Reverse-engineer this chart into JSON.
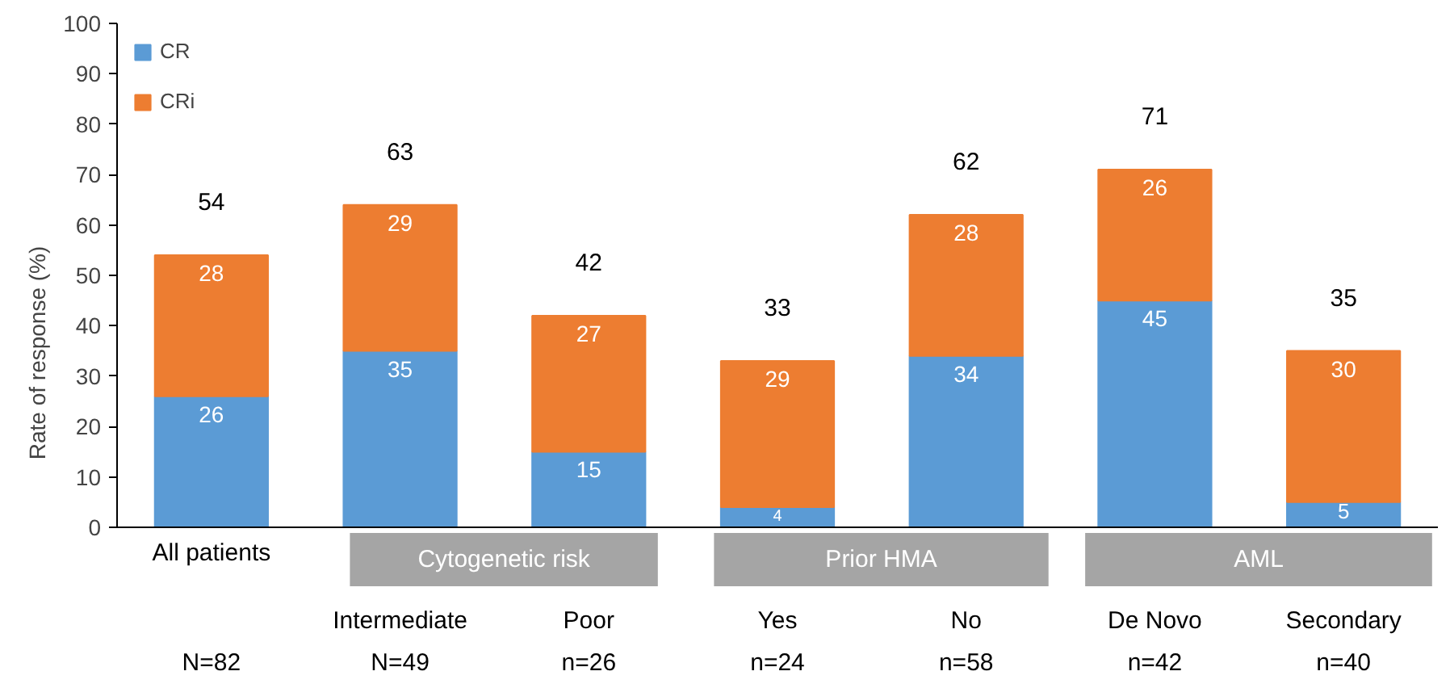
{
  "chart_data": {
    "type": "bar",
    "stacked": true,
    "ylabel": "Rate of response (%)",
    "categories": [
      "All patients",
      "Intermediate",
      "Poor",
      "Yes",
      "No",
      "De Novo",
      "Secondary"
    ],
    "series": [
      {
        "name": "CR",
        "color": "#5b9bd5",
        "values": [
          26,
          35,
          15,
          4,
          34,
          45,
          5
        ]
      },
      {
        "name": "CRi",
        "color": "#ed7d31",
        "values": [
          28,
          29,
          27,
          29,
          28,
          26,
          30
        ]
      }
    ],
    "totals": [
      "54",
      "63",
      "42",
      "33",
      "62",
      "71",
      "35"
    ],
    "data_labels": true,
    "ylim": [
      0,
      100
    ],
    "yticks": [
      0,
      10,
      20,
      30,
      40,
      50,
      60,
      70,
      80,
      90,
      100
    ],
    "grid": false,
    "legend": "top left",
    "annotations": [
      "Cytogenetic risk",
      "Prior HMA",
      "AML",
      "N=82",
      "N=49",
      "n=26",
      "n=24",
      "n=58",
      "n=42",
      "n=40"
    ]
  }
}
